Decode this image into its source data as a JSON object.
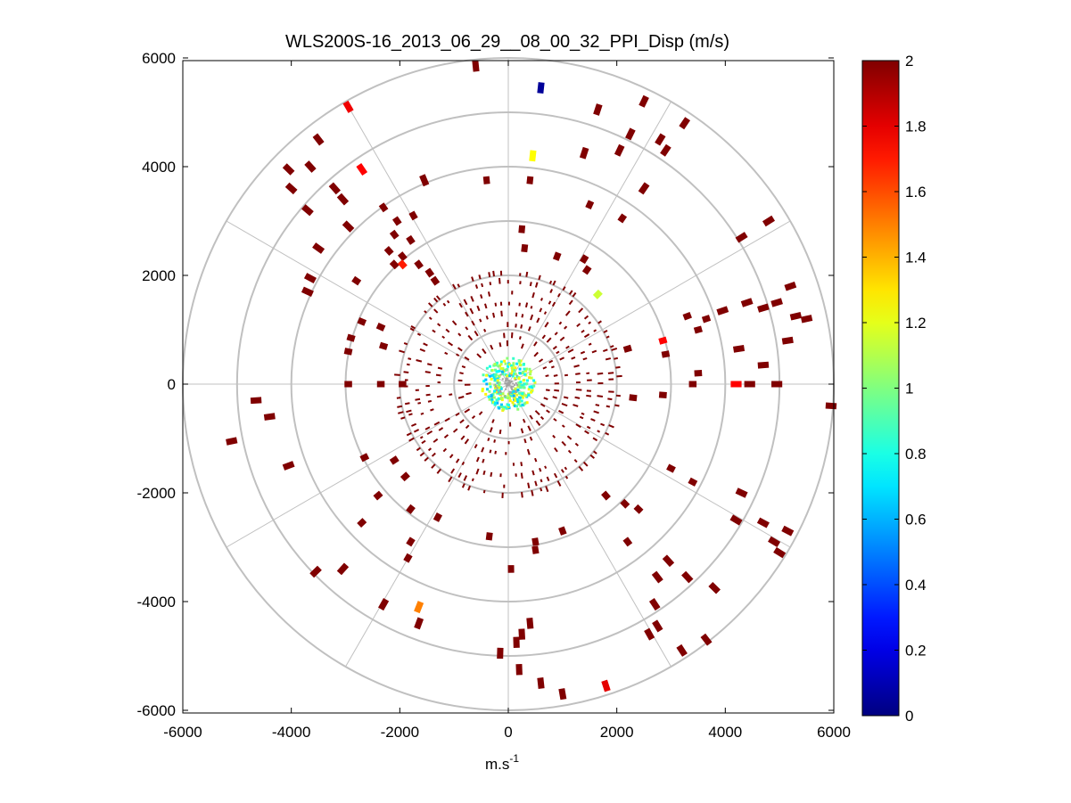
{
  "chart_data": {
    "type": "scatter",
    "subtype": "polar-ppi-scan",
    "title": "WLS200S-16_2013_06_29__08_00_32_PPI_Disp (m/s)",
    "xlabel": "m.s",
    "xlabel_superscript": "-1",
    "ylabel": "",
    "xlim": [
      -6000,
      6000
    ],
    "ylim": [
      -6000,
      6000
    ],
    "xticks": [
      -6000,
      -4000,
      -2000,
      0,
      2000,
      4000,
      6000
    ],
    "yticks": [
      6000,
      4000,
      2000,
      0,
      -2000,
      -4000,
      -6000
    ],
    "grid": true,
    "polar_grid_ranges": [
      1000,
      2000,
      3000,
      4000,
      5000,
      6000
    ],
    "polar_spoke_angles_deg": [
      0,
      30,
      60,
      90,
      120,
      150,
      180,
      210,
      240,
      270,
      300,
      330
    ],
    "colorbar": {
      "min": 0,
      "max": 2,
      "ticks": [
        "2",
        "1.8",
        "1.6",
        "1.4",
        "1.2",
        "1",
        "0.8",
        "0.6",
        "0.4",
        "0.2",
        "0"
      ],
      "colormap": "jet",
      "colors": [
        "#00008f",
        "#0000ff",
        "#0080ff",
        "#00ffff",
        "#80ff80",
        "#ffff00",
        "#ff8000",
        "#ff0000",
        "#800000"
      ]
    },
    "point_color_default": "#800000",
    "points": [
      {
        "x": -600,
        "y": 5850,
        "v": 2.0
      },
      {
        "x": 600,
        "y": 5450,
        "v": 0.05
      },
      {
        "x": 1650,
        "y": 5050,
        "v": 2.0
      },
      {
        "x": 2500,
        "y": 5200,
        "v": 2.0
      },
      {
        "x": 3250,
        "y": 4800,
        "v": 2.0
      },
      {
        "x": 2250,
        "y": 4600,
        "v": 2.0
      },
      {
        "x": 2900,
        "y": 4300,
        "v": 2.0
      },
      {
        "x": 1400,
        "y": 4250,
        "v": 2.0
      },
      {
        "x": 450,
        "y": 4200,
        "v": 1.25
      },
      {
        "x": 2050,
        "y": 4300,
        "v": 2.0
      },
      {
        "x": 2800,
        "y": 4500,
        "v": 2.0
      },
      {
        "x": 400,
        "y": 3750,
        "v": 2.0
      },
      {
        "x": -400,
        "y": 3750,
        "v": 2.0
      },
      {
        "x": -1550,
        "y": 3750,
        "v": 2.0
      },
      {
        "x": -2950,
        "y": 5100,
        "v": 1.78
      },
      {
        "x": -2700,
        "y": 3950,
        "v": 1.75
      },
      {
        "x": -3500,
        "y": 4500,
        "v": 2.0
      },
      {
        "x": -4050,
        "y": 3950,
        "v": 2.0
      },
      {
        "x": -3650,
        "y": 4000,
        "v": 2.0
      },
      {
        "x": -4000,
        "y": 3600,
        "v": 2.0
      },
      {
        "x": -3200,
        "y": 3600,
        "v": 2.0
      },
      {
        "x": -3050,
        "y": 3400,
        "v": 2.0
      },
      {
        "x": -3700,
        "y": 3200,
        "v": 2.0
      },
      {
        "x": -2950,
        "y": 2900,
        "v": 2.0
      },
      {
        "x": -3500,
        "y": 2500,
        "v": 2.0
      },
      {
        "x": -2300,
        "y": 3250,
        "v": 2.0
      },
      {
        "x": -1750,
        "y": 3100,
        "v": 2.0
      },
      {
        "x": -2050,
        "y": 3000,
        "v": 2.0
      },
      {
        "x": -2100,
        "y": 2750,
        "v": 2.0
      },
      {
        "x": -1800,
        "y": 2650,
        "v": 2.0
      },
      {
        "x": -2200,
        "y": 2450,
        "v": 2.0
      },
      {
        "x": -1950,
        "y": 2350,
        "v": 2.0
      },
      {
        "x": -2100,
        "y": 2200,
        "v": 2.0
      },
      {
        "x": -1950,
        "y": 2200,
        "v": 1.7
      },
      {
        "x": -1650,
        "y": 2200,
        "v": 2.0
      },
      {
        "x": -1450,
        "y": 2050,
        "v": 2.0
      },
      {
        "x": -1350,
        "y": 1900,
        "v": 2.0
      },
      {
        "x": -3650,
        "y": 1950,
        "v": 2.0
      },
      {
        "x": -2800,
        "y": 1900,
        "v": 2.0
      },
      {
        "x": -3700,
        "y": 1700,
        "v": 2.0
      },
      {
        "x": 1500,
        "y": 3300,
        "v": 2.0
      },
      {
        "x": 2500,
        "y": 3600,
        "v": 2.0
      },
      {
        "x": 2100,
        "y": 3050,
        "v": 2.0
      },
      {
        "x": 250,
        "y": 2850,
        "v": 2.0
      },
      {
        "x": 300,
        "y": 2500,
        "v": 2.0
      },
      {
        "x": 900,
        "y": 2350,
        "v": 2.0
      },
      {
        "x": 1400,
        "y": 2300,
        "v": 2.0
      },
      {
        "x": 1450,
        "y": 2100,
        "v": 2.0
      },
      {
        "x": 1650,
        "y": 1650,
        "v": 1.15
      },
      {
        "x": 4300,
        "y": 2700,
        "v": 2.0
      },
      {
        "x": 4800,
        "y": 3000,
        "v": 2.0
      },
      {
        "x": 5200,
        "y": 1800,
        "v": 2.0
      },
      {
        "x": 4950,
        "y": 1500,
        "v": 2.0
      },
      {
        "x": 5300,
        "y": 1250,
        "v": 2.0
      },
      {
        "x": 4700,
        "y": 1400,
        "v": 2.0
      },
      {
        "x": 4400,
        "y": 1500,
        "v": 2.0
      },
      {
        "x": 5500,
        "y": 1200,
        "v": 2.0
      },
      {
        "x": 3950,
        "y": 1350,
        "v": 2.0
      },
      {
        "x": 3650,
        "y": 1200,
        "v": 2.0
      },
      {
        "x": 3300,
        "y": 1250,
        "v": 2.0
      },
      {
        "x": 3500,
        "y": 1000,
        "v": 2.0
      },
      {
        "x": 2850,
        "y": 800,
        "v": 1.75
      },
      {
        "x": 2900,
        "y": 550,
        "v": 2.0
      },
      {
        "x": 2200,
        "y": 650,
        "v": 2.0
      },
      {
        "x": 4250,
        "y": 650,
        "v": 2.0
      },
      {
        "x": 4700,
        "y": 350,
        "v": 2.0
      },
      {
        "x": 5150,
        "y": 800,
        "v": 2.0
      },
      {
        "x": 3500,
        "y": 200,
        "v": 2.0
      },
      {
        "x": 3400,
        "y": 0,
        "v": 2.0
      },
      {
        "x": 4200,
        "y": 0,
        "v": 1.75
      },
      {
        "x": 4450,
        "y": 0,
        "v": 2.0
      },
      {
        "x": 4950,
        "y": 0,
        "v": 2.0
      },
      {
        "x": 5950,
        "y": -400,
        "v": 2.0
      },
      {
        "x": 2850,
        "y": -200,
        "v": 2.0
      },
      {
        "x": 2300,
        "y": -250,
        "v": 2.0
      },
      {
        "x": -2950,
        "y": 600,
        "v": 2.0
      },
      {
        "x": -2700,
        "y": 1150,
        "v": 2.0
      },
      {
        "x": -2900,
        "y": 850,
        "v": 2.0
      },
      {
        "x": -2300,
        "y": 700,
        "v": 2.0
      },
      {
        "x": -2350,
        "y": 1050,
        "v": 2.0
      },
      {
        "x": -2950,
        "y": 0,
        "v": 2.0
      },
      {
        "x": -2350,
        "y": 0,
        "v": 2.0
      },
      {
        "x": -1950,
        "y": 0,
        "v": 2.0
      },
      {
        "x": -4650,
        "y": -300,
        "v": 2.0
      },
      {
        "x": -4400,
        "y": -600,
        "v": 2.0
      },
      {
        "x": -5100,
        "y": -1050,
        "v": 2.0
      },
      {
        "x": -4050,
        "y": -1500,
        "v": 2.0
      },
      {
        "x": -2650,
        "y": -1350,
        "v": 2.0
      },
      {
        "x": -2100,
        "y": -1400,
        "v": 2.0
      },
      {
        "x": -1900,
        "y": -1700,
        "v": 2.0
      },
      {
        "x": -2400,
        "y": -2050,
        "v": 2.0
      },
      {
        "x": -1800,
        "y": -2300,
        "v": 2.0
      },
      {
        "x": -2700,
        "y": -2550,
        "v": 2.0
      },
      {
        "x": -1300,
        "y": -2450,
        "v": 2.0
      },
      {
        "x": -1800,
        "y": -2900,
        "v": 2.0
      },
      {
        "x": -1850,
        "y": -3200,
        "v": 2.0
      },
      {
        "x": -3550,
        "y": -3450,
        "v": 2.0
      },
      {
        "x": -3050,
        "y": -3400,
        "v": 2.0
      },
      {
        "x": -2300,
        "y": -4050,
        "v": 2.0
      },
      {
        "x": -1650,
        "y": -4100,
        "v": 1.5
      },
      {
        "x": -1650,
        "y": -4400,
        "v": 2.0
      },
      {
        "x": -350,
        "y": -2800,
        "v": 2.0
      },
      {
        "x": 50,
        "y": -3400,
        "v": 2.0
      },
      {
        "x": 500,
        "y": -2900,
        "v": 2.0
      },
      {
        "x": 500,
        "y": -3050,
        "v": 2.0
      },
      {
        "x": 1000,
        "y": -2700,
        "v": 2.0
      },
      {
        "x": 400,
        "y": -4400,
        "v": 2.0
      },
      {
        "x": 250,
        "y": -4600,
        "v": 2.0
      },
      {
        "x": 150,
        "y": -4750,
        "v": 2.0
      },
      {
        "x": -150,
        "y": -4950,
        "v": 2.0
      },
      {
        "x": 200,
        "y": -5250,
        "v": 2.0
      },
      {
        "x": 600,
        "y": -5500,
        "v": 2.0
      },
      {
        "x": 1000,
        "y": -5700,
        "v": 2.0
      },
      {
        "x": 1800,
        "y": -5550,
        "v": 1.8
      },
      {
        "x": 1800,
        "y": -2050,
        "v": 2.0
      },
      {
        "x": 2150,
        "y": -2200,
        "v": 2.0
      },
      {
        "x": 2400,
        "y": -2300,
        "v": 2.0
      },
      {
        "x": 2200,
        "y": -2900,
        "v": 2.0
      },
      {
        "x": 2950,
        "y": -3250,
        "v": 2.0
      },
      {
        "x": 2750,
        "y": -3550,
        "v": 2.0
      },
      {
        "x": 3300,
        "y": -3550,
        "v": 2.0
      },
      {
        "x": 2700,
        "y": -4050,
        "v": 2.0
      },
      {
        "x": 3800,
        "y": -3750,
        "v": 2.0
      },
      {
        "x": 2600,
        "y": -4600,
        "v": 2.0
      },
      {
        "x": 2750,
        "y": -4450,
        "v": 2.0
      },
      {
        "x": 3200,
        "y": -4900,
        "v": 2.0
      },
      {
        "x": 3650,
        "y": -4700,
        "v": 2.0
      },
      {
        "x": 4700,
        "y": -2550,
        "v": 2.0
      },
      {
        "x": 4900,
        "y": -2900,
        "v": 2.0
      },
      {
        "x": 5150,
        "y": -2700,
        "v": 2.0
      },
      {
        "x": 5000,
        "y": -3100,
        "v": 2.0
      },
      {
        "x": 4300,
        "y": -2000,
        "v": 2.0
      },
      {
        "x": 4200,
        "y": -2500,
        "v": 2.0
      },
      {
        "x": 3400,
        "y": -1800,
        "v": 2.0
      },
      {
        "x": 3000,
        "y": -1550,
        "v": 2.0
      }
    ],
    "near_field": {
      "inner_radius_m": 500,
      "outer_radius_m": 2000
    }
  }
}
